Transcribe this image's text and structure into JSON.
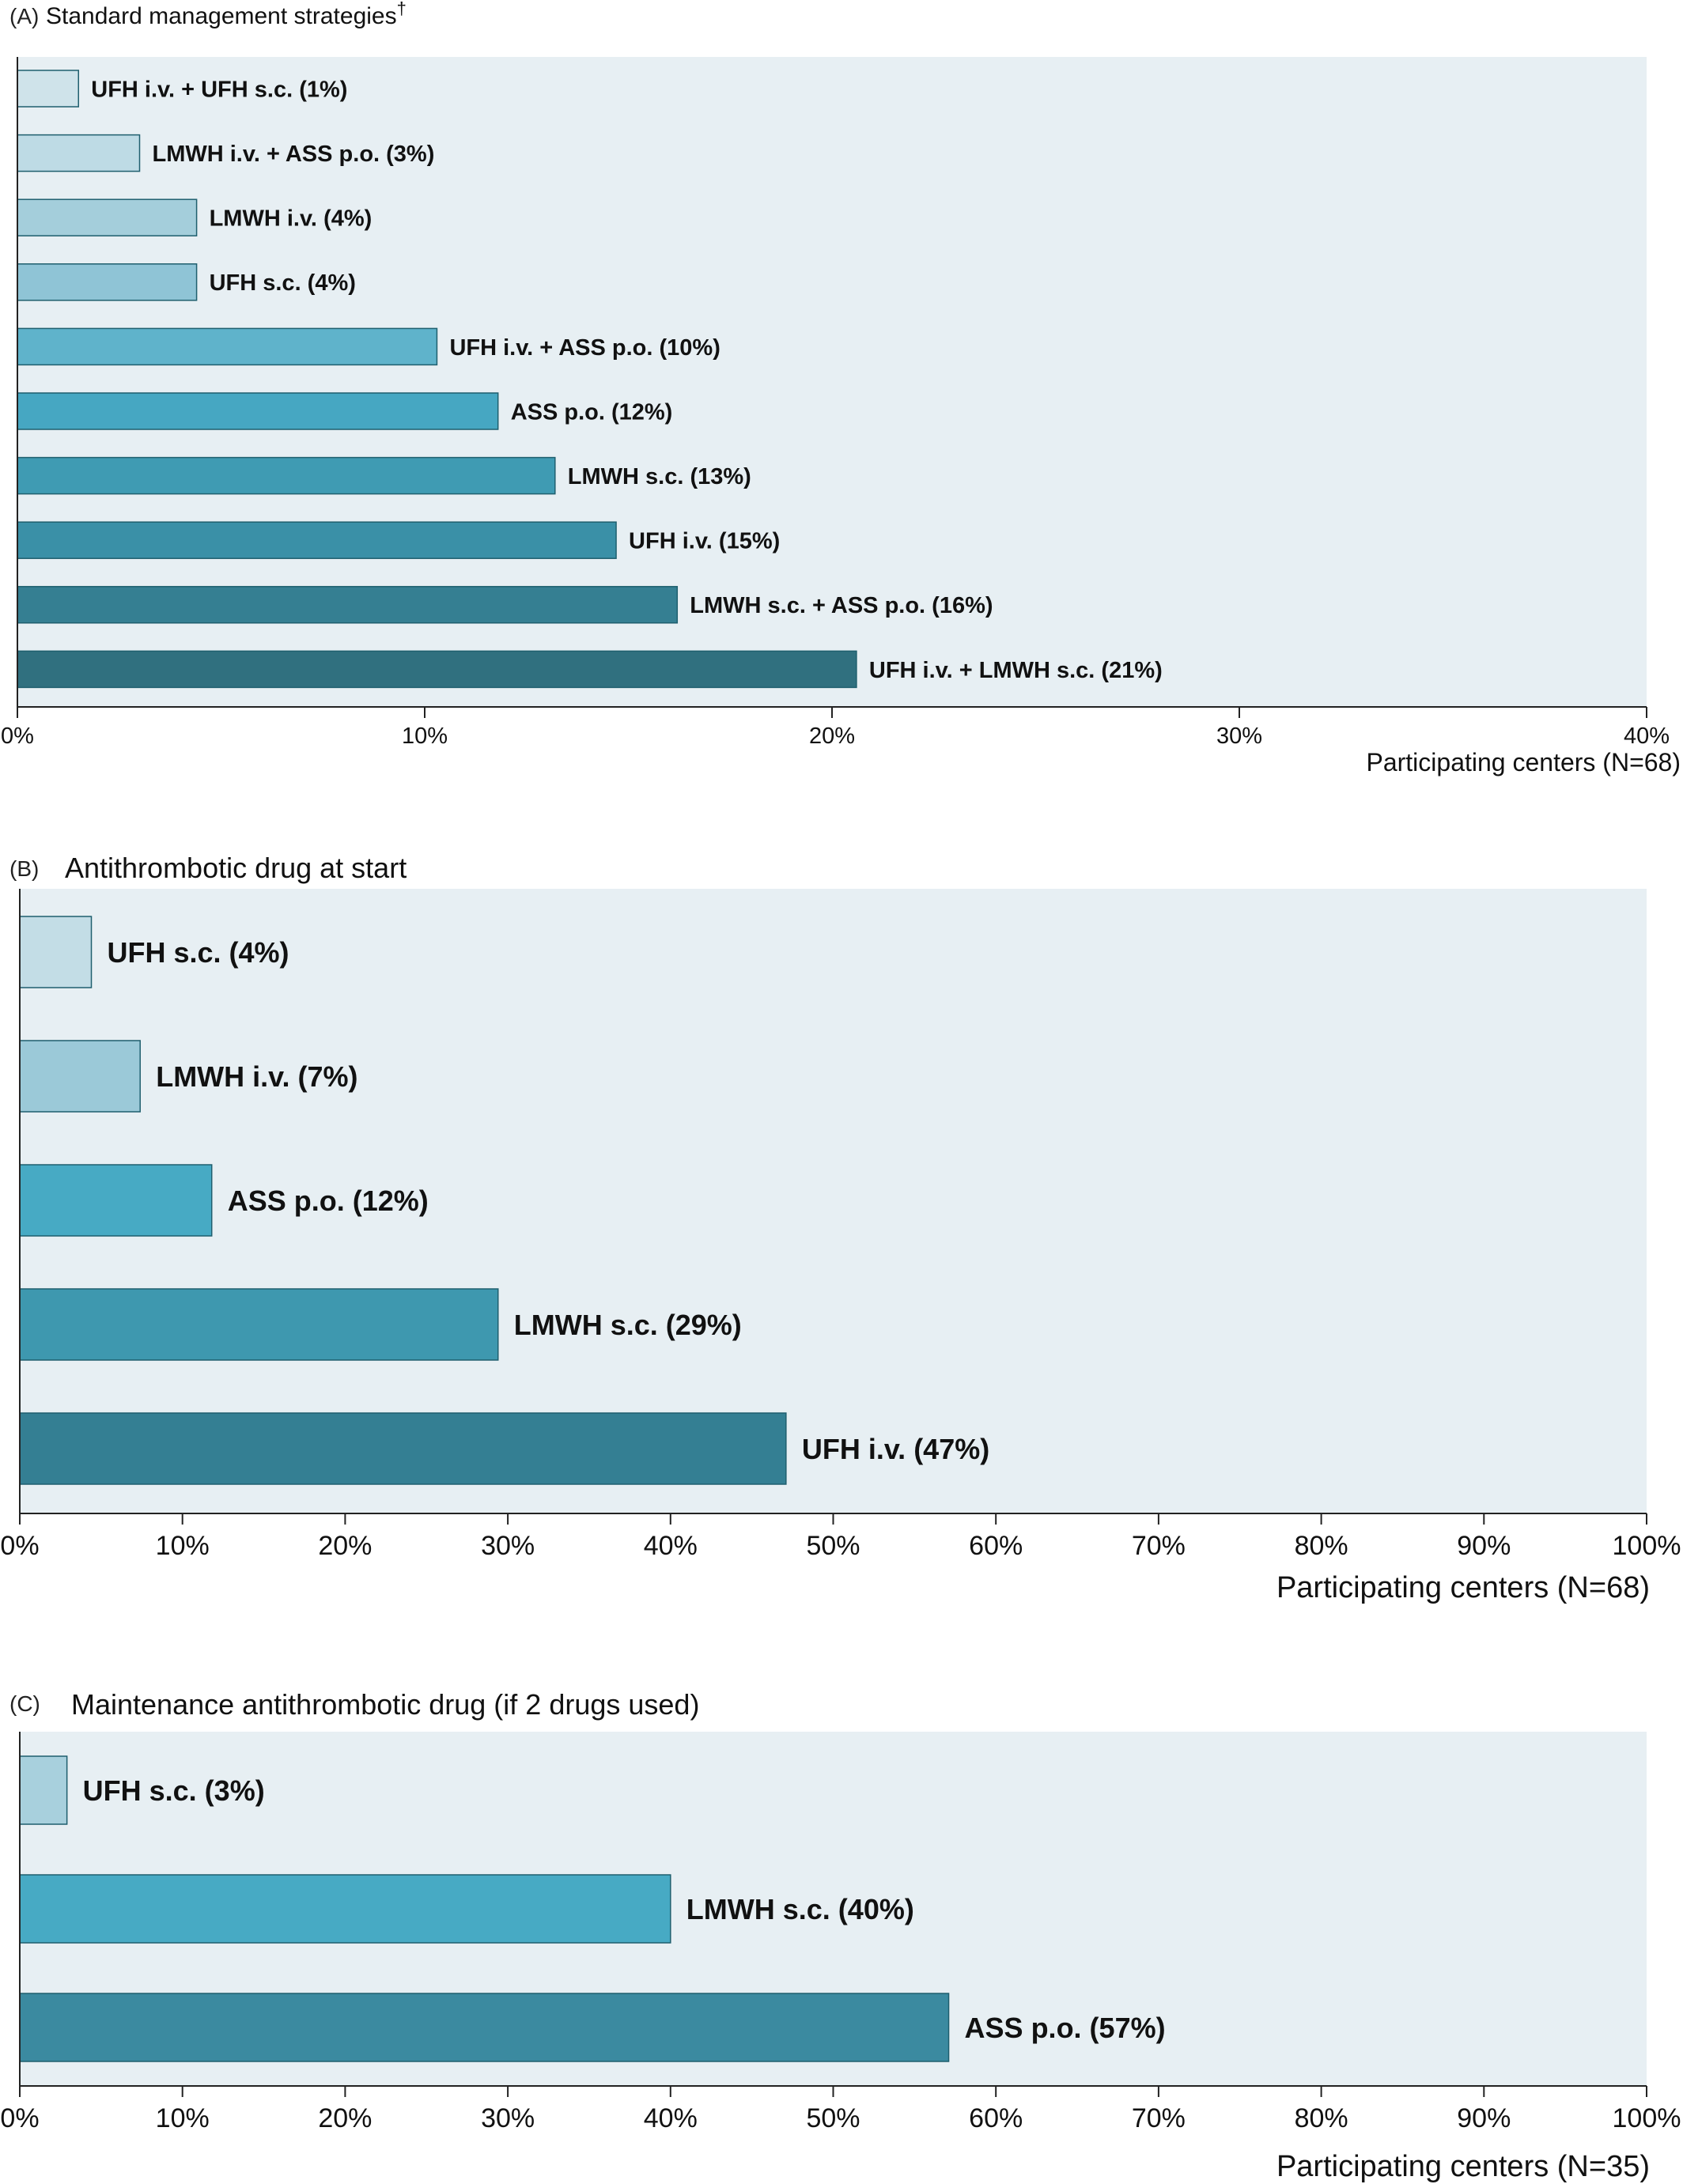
{
  "chart_data": [
    {
      "type": "bar",
      "orientation": "horizontal",
      "panel": "(A)",
      "title": "Standard management strategies",
      "title_sup": "†",
      "categories": [
        "UFH i.v. + UFH s.c. (1%)",
        "LMWH i.v. + ASS p.o. (3%)",
        "LMWH i.v. (4%)",
        "UFH s.c. (4%)",
        "UFH i.v. + ASS p.o. (10%)",
        "ASS p.o. (12%)",
        "LMWH s.c. (13%)",
        "UFH i.v. (15%)",
        "LMWH s.c. + ASS p.o. (16%)",
        "UFH i.v. + LMWH s.c. (21%)"
      ],
      "values": [
        1.5,
        3.0,
        4.4,
        4.4,
        10.3,
        11.8,
        13.2,
        14.7,
        16.2,
        20.6
      ],
      "colors": [
        "#cfe3ea",
        "#bedbe5",
        "#a4cedb",
        "#8fc4d6",
        "#5fb3cb",
        "#46a7c2",
        "#3f9bb3",
        "#3a90a7",
        "#357f92",
        "#30707f"
      ],
      "xlim": [
        0,
        40
      ],
      "ticks": [
        "0%",
        "10%",
        "20%",
        "30%",
        "40%"
      ],
      "xlabel": "Participating centers (N=68)",
      "grid": false
    },
    {
      "type": "bar",
      "orientation": "horizontal",
      "panel": "(B)",
      "title": "Antithrombotic drug at start",
      "categories": [
        "UFH s.c. (4%)",
        "LMWH i.v. (7%)",
        "ASS p.o. (12%)",
        "LMWH s.c. (29%)",
        "UFH i.v. (47%)"
      ],
      "values": [
        4.4,
        7.4,
        11.8,
        29.4,
        47.1
      ],
      "colors": [
        "#c3dde6",
        "#9bc9d8",
        "#47aac4",
        "#3e98af",
        "#347f93"
      ],
      "xlim": [
        0,
        100
      ],
      "ticks": [
        "0%",
        "10%",
        "20%",
        "30%",
        "40%",
        "50%",
        "60%",
        "70%",
        "80%",
        "90%",
        "100%"
      ],
      "xlabel": "Participating centers (N=68)",
      "grid": false
    },
    {
      "type": "bar",
      "orientation": "horizontal",
      "panel": "(C)",
      "title": "Maintenance antithrombotic drug (if 2 drugs used)",
      "categories": [
        "UFH s.c. (3%)",
        "LMWH s.c. (40%)",
        "ASS p.o. (57%)"
      ],
      "values": [
        2.9,
        40.0,
        57.1
      ],
      "colors": [
        "#a8d0dd",
        "#47aac4",
        "#3b8aa0"
      ],
      "xlim": [
        0,
        100
      ],
      "ticks": [
        "0%",
        "10%",
        "20%",
        "30%",
        "40%",
        "50%",
        "60%",
        "70%",
        "80%",
        "90%",
        "100%"
      ],
      "xlabel": "Participating centers (N=35)",
      "grid": false
    }
  ],
  "colors": {
    "plot_background": "#e7eff3",
    "axis": "#222222",
    "bar_outline": "#1f5f6e"
  }
}
